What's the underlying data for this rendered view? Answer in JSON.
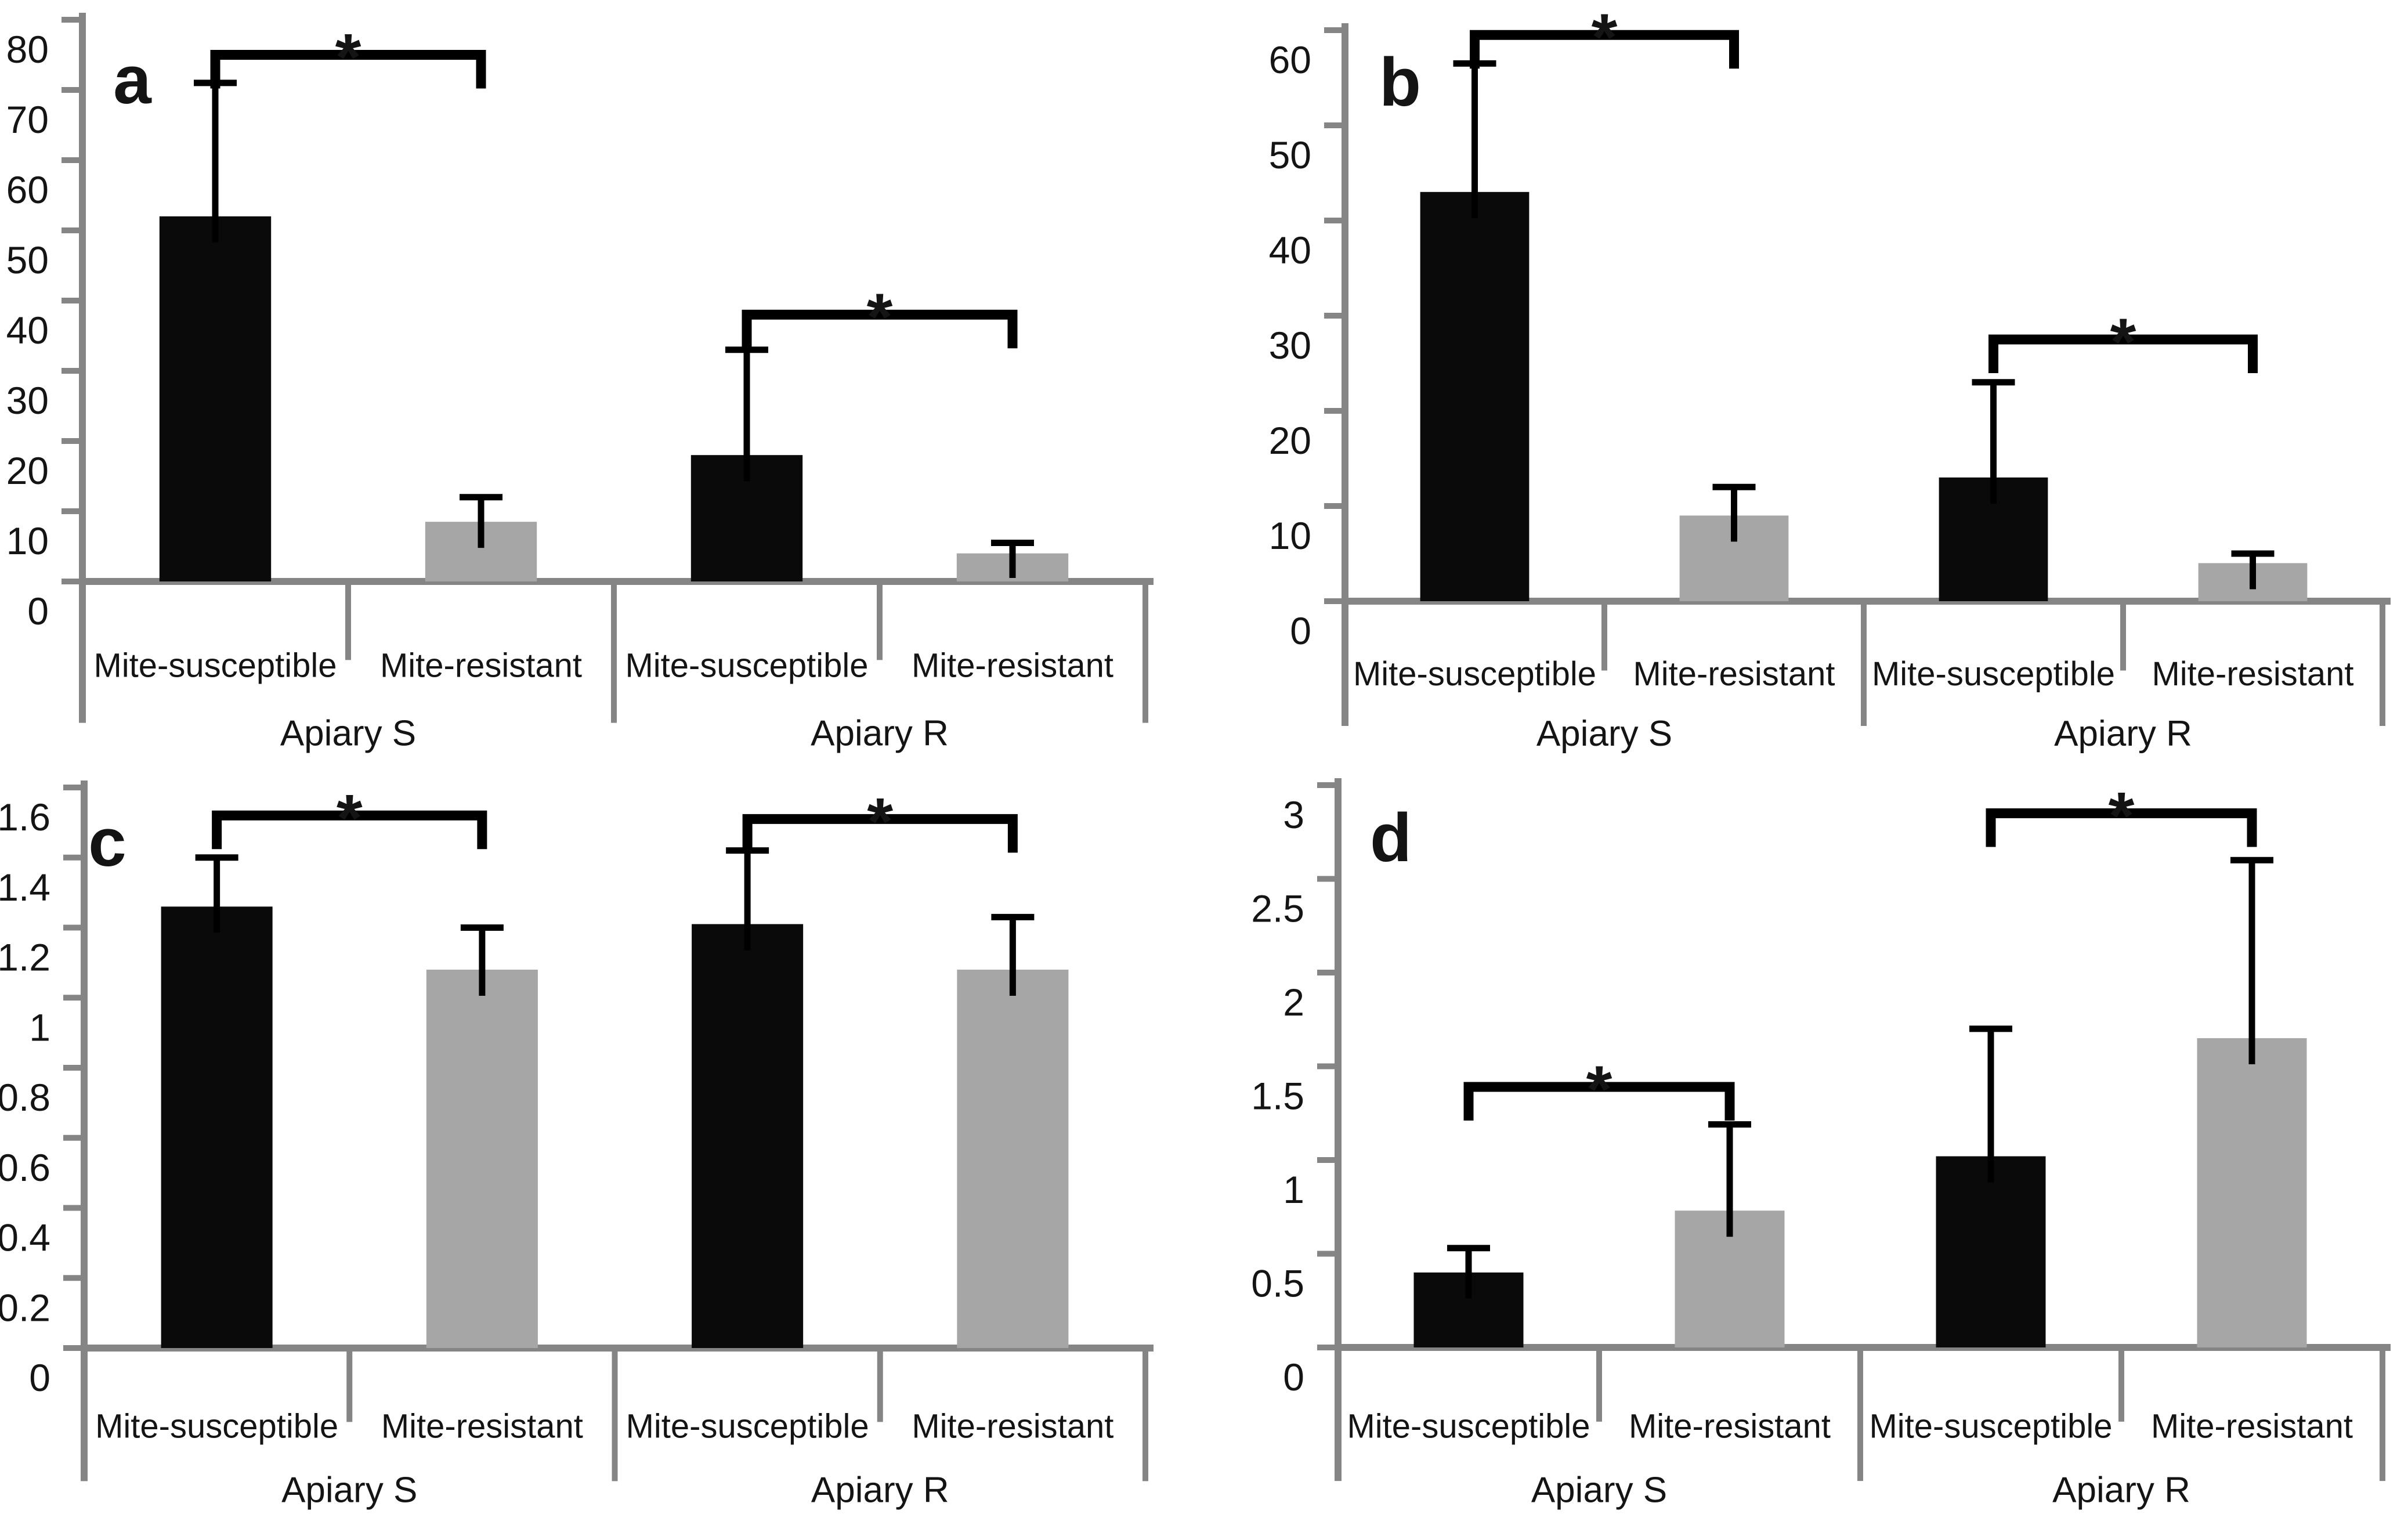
{
  "figure": {
    "description": "Four-panel bar chart comparing mite-susceptible and mite-resistant honey bee colonies in two apiaries",
    "colors": {
      "bar_black": "#0a0a0a",
      "bar_gray": "#a6a6a6",
      "axis_gray": "#858585",
      "error_black": "#000000",
      "bracket_black": "#000000",
      "text": "#141414",
      "background": "#ffffff"
    }
  },
  "chart_data": [
    {
      "type": "bar",
      "panel_label": "a",
      "ylim": [
        0,
        80
      ],
      "y_ticks": [
        0,
        10,
        20,
        30,
        40,
        50,
        60,
        70,
        80
      ],
      "y_tick_labels": [
        "0",
        "10",
        "20",
        "30",
        "40",
        "50",
        "60",
        "70",
        "80"
      ],
      "grid": false,
      "legend": "none",
      "groups": [
        {
          "label": "Apiary S",
          "bars": [
            {
              "category": "Mite-susceptible",
              "fill": "black",
              "value": 52,
              "error_top": 71
            },
            {
              "category": "Mite-resistant",
              "fill": "gray",
              "value": 8.5,
              "error_top": 12
            }
          ]
        },
        {
          "label": "Apiary R",
          "bars": [
            {
              "category": "Mite-susceptible",
              "fill": "black",
              "value": 18,
              "error_top": 33
            },
            {
              "category": "Mite-resistant",
              "fill": "gray",
              "value": 4,
              "error_top": 5.5
            }
          ]
        }
      ],
      "significance": [
        {
          "group_index": 0,
          "bracket_value": 75,
          "label": "*"
        },
        {
          "group_index": 1,
          "bracket_value": 38,
          "label": "*"
        }
      ]
    },
    {
      "type": "bar",
      "panel_label": "b",
      "ylim": [
        0,
        60
      ],
      "y_ticks": [
        0,
        10,
        20,
        30,
        40,
        50,
        60
      ],
      "y_tick_labels": [
        "0",
        "10",
        "20",
        "30",
        "40",
        "50",
        "60"
      ],
      "grid": false,
      "legend": "none",
      "groups": [
        {
          "label": "Apiary S",
          "bars": [
            {
              "category": "Mite-susceptible",
              "fill": "black",
              "value": 43,
              "error_top": 56.5
            },
            {
              "category": "Mite-resistant",
              "fill": "gray",
              "value": 9,
              "error_top": 12
            }
          ]
        },
        {
          "label": "Apiary R",
          "bars": [
            {
              "category": "Mite-susceptible",
              "fill": "black",
              "value": 13,
              "error_top": 23
            },
            {
              "category": "Mite-resistant",
              "fill": "gray",
              "value": 4,
              "error_top": 5
            }
          ]
        }
      ],
      "significance": [
        {
          "group_index": 0,
          "bracket_value": 59.5,
          "label": "*"
        },
        {
          "group_index": 1,
          "bracket_value": 27.5,
          "label": "*"
        }
      ]
    },
    {
      "type": "bar",
      "panel_label": "c",
      "ylim": [
        0,
        1.6
      ],
      "y_ticks": [
        0,
        0.2,
        0.4,
        0.6,
        0.8,
        1,
        1.2,
        1.4,
        1.6
      ],
      "y_tick_labels": [
        "0",
        "0.2",
        "0.4",
        "0.6",
        "0.8",
        "1",
        "1.2",
        "1.4",
        "1.6"
      ],
      "grid": false,
      "legend": "none",
      "groups": [
        {
          "label": "Apiary S",
          "bars": [
            {
              "category": "Mite-susceptible",
              "fill": "black",
              "value": 1.26,
              "error_top": 1.4
            },
            {
              "category": "Mite-resistant",
              "fill": "gray",
              "value": 1.08,
              "error_top": 1.2
            }
          ]
        },
        {
          "label": "Apiary R",
          "bars": [
            {
              "category": "Mite-susceptible",
              "fill": "black",
              "value": 1.21,
              "error_top": 1.42
            },
            {
              "category": "Mite-resistant",
              "fill": "gray",
              "value": 1.08,
              "error_top": 1.23
            }
          ]
        }
      ],
      "significance": [
        {
          "group_index": 0,
          "bracket_value": 1.52,
          "label": "*"
        },
        {
          "group_index": 1,
          "bracket_value": 1.51,
          "label": "*"
        }
      ]
    },
    {
      "type": "bar",
      "panel_label": "d",
      "ylim": [
        0,
        3
      ],
      "y_ticks": [
        0,
        0.5,
        1,
        1.5,
        2,
        2.5,
        3
      ],
      "y_tick_labels": [
        "0",
        "0.5",
        "1",
        "1.5",
        "2",
        "2.5",
        "3"
      ],
      "grid": false,
      "legend": "none",
      "groups": [
        {
          "label": "Apiary S",
          "bars": [
            {
              "category": "Mite-susceptible",
              "fill": "black",
              "value": 0.4,
              "error_top": 0.53
            },
            {
              "category": "Mite-resistant",
              "fill": "gray",
              "value": 0.73,
              "error_top": 1.19
            }
          ]
        },
        {
          "label": "Apiary R",
          "bars": [
            {
              "category": "Mite-susceptible",
              "fill": "black",
              "value": 1.02,
              "error_top": 1.7
            },
            {
              "category": "Mite-resistant",
              "fill": "gray",
              "value": 1.65,
              "error_top": 2.6
            }
          ]
        }
      ],
      "significance": [
        {
          "group_index": 0,
          "bracket_value": 1.39,
          "label": "*"
        },
        {
          "group_index": 1,
          "bracket_value": 2.85,
          "label": "*"
        }
      ]
    }
  ]
}
